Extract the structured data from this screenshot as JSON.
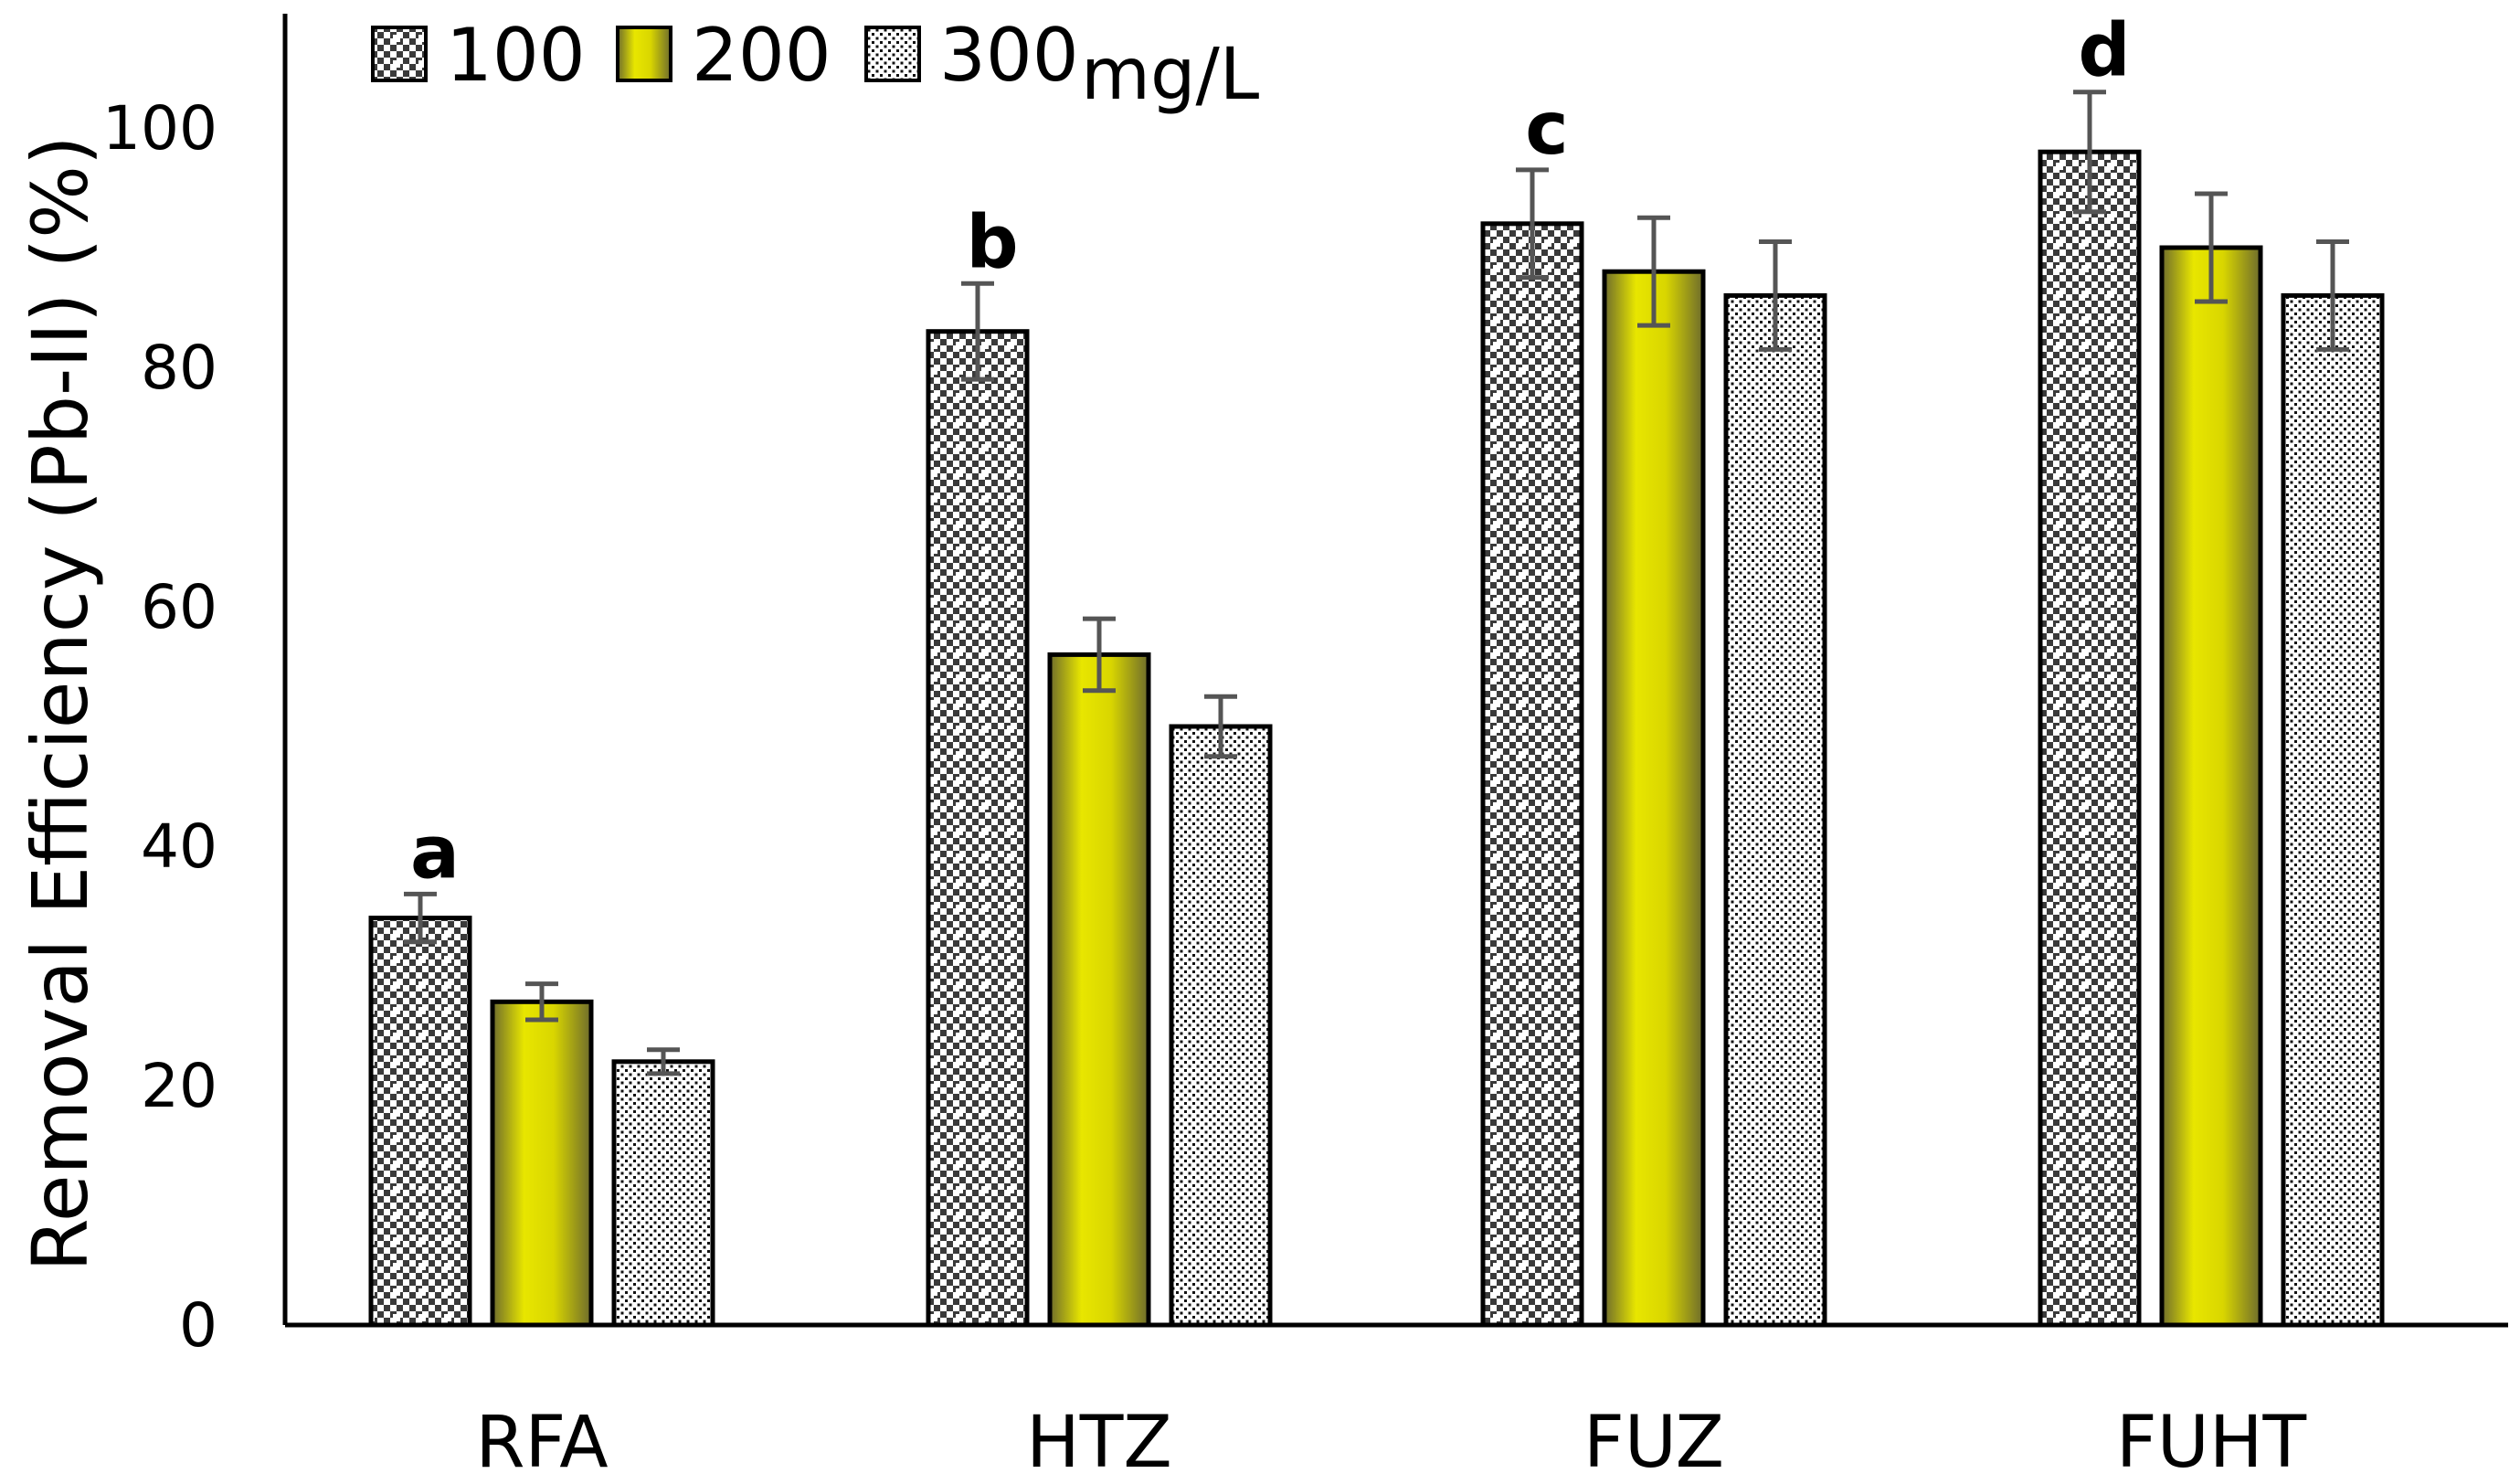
{
  "chart_data": {
    "type": "bar",
    "title": "",
    "xlabel": "",
    "ylabel": "Removal Efficiency (Pb-II) (%)",
    "ylim": [
      0,
      110
    ],
    "yticks": [
      0,
      20,
      40,
      60,
      80,
      100
    ],
    "categories": [
      "RFA",
      "HTZ",
      "FUZ",
      "FUHT"
    ],
    "legend_unit": "mg/L",
    "legend_position": "top-left",
    "series": [
      {
        "name": "100",
        "pattern": "checker-dots",
        "values": [
          34,
          83,
          92,
          98
        ],
        "errors": [
          2,
          4,
          4.5,
          5
        ]
      },
      {
        "name": "200",
        "pattern": "yellow-gradient",
        "values": [
          27,
          56,
          88,
          90
        ],
        "errors": [
          1.5,
          3,
          4.5,
          4.5
        ]
      },
      {
        "name": "300",
        "pattern": "fine-dots",
        "values": [
          22,
          50,
          86,
          86
        ],
        "errors": [
          1,
          2.5,
          4.5,
          4.5
        ]
      }
    ],
    "annotations": [
      {
        "category": "RFA",
        "text": "a"
      },
      {
        "category": "HTZ",
        "text": "b"
      },
      {
        "category": "FUZ",
        "text": "c"
      },
      {
        "category": "FUHT",
        "text": "d"
      }
    ],
    "colors": {
      "axis": "#000000",
      "bar_outline": "#000000",
      "error_bar": "#555555",
      "checker_dark": "#3a3a3a",
      "checker_light": "#ffffff",
      "yellow_center": "#e8e600",
      "yellow_edge": "#6e6c2c",
      "fine_dot": "#111111"
    }
  }
}
